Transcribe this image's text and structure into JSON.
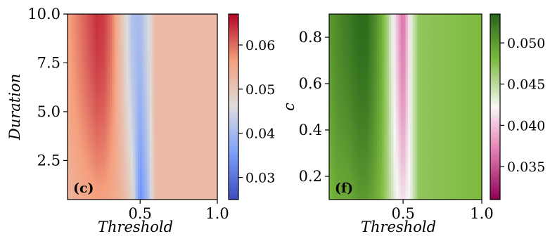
{
  "chart_data": [
    {
      "type": "heatmap",
      "panel_label": "(c)",
      "xlabel": "Threshold",
      "ylabel": "Duration",
      "xlim": [
        0.03,
        1.0
      ],
      "ylim": [
        0.5,
        10.0
      ],
      "x_ticks": [
        0.5,
        1.0
      ],
      "x_tick_labels": [
        "0.5",
        "1.0"
      ],
      "y_ticks": [
        2.5,
        5.0,
        7.5,
        10.0
      ],
      "y_tick_labels": [
        "2.5",
        "5.0",
        "7.5",
        "10.0"
      ],
      "colormap": "coolwarm",
      "colorbar_range": [
        0.025,
        0.067
      ],
      "colorbar_ticks": [
        0.03,
        0.04,
        0.05,
        0.06
      ],
      "colorbar_tick_labels": [
        "0.03",
        "0.04",
        "0.05",
        "0.06"
      ],
      "grid": false,
      "background_value": 0.052,
      "profile_x": [
        0.03,
        0.08,
        0.15,
        0.22,
        0.27,
        0.32,
        0.36,
        0.4,
        0.45,
        0.5,
        0.55,
        0.6,
        1.0
      ],
      "profile_top": [
        0.056,
        0.058,
        0.061,
        0.064,
        0.063,
        0.059,
        0.053,
        0.048,
        0.041,
        0.04,
        0.045,
        0.052,
        0.052
      ],
      "profile_bottom": [
        0.053,
        0.054,
        0.055,
        0.056,
        0.056,
        0.055,
        0.054,
        0.052,
        0.048,
        0.033,
        0.04,
        0.052,
        0.052
      ]
    },
    {
      "type": "heatmap",
      "panel_label": "(f)",
      "xlabel": "Threshold",
      "ylabel": "c",
      "xlim": [
        0.03,
        1.0
      ],
      "ylim": [
        0.1,
        0.9
      ],
      "x_ticks": [
        0.5,
        1.0
      ],
      "x_tick_labels": [
        "0.5",
        "1.0"
      ],
      "y_ticks": [
        0.2,
        0.4,
        0.6,
        0.8
      ],
      "y_tick_labels": [
        "0.2",
        "0.4",
        "0.6",
        "0.8"
      ],
      "colormap": "PiYG",
      "colorbar_range": [
        0.031,
        0.0535
      ],
      "colorbar_ticks": [
        0.035,
        0.04,
        0.045,
        0.05
      ],
      "colorbar_tick_labels": [
        "0.035",
        "0.040",
        "0.045",
        "0.050"
      ],
      "grid": false,
      "background_value": 0.048,
      "profile_x": [
        0.03,
        0.08,
        0.15,
        0.22,
        0.27,
        0.32,
        0.36,
        0.4,
        0.45,
        0.5,
        0.55,
        0.6,
        1.0
      ],
      "profile_top": [
        0.05,
        0.051,
        0.052,
        0.053,
        0.053,
        0.051,
        0.049,
        0.046,
        0.041,
        0.036,
        0.043,
        0.047,
        0.048
      ],
      "profile_bottom": [
        0.048,
        0.049,
        0.049,
        0.05,
        0.05,
        0.049,
        0.048,
        0.046,
        0.043,
        0.041,
        0.043,
        0.047,
        0.048
      ]
    }
  ]
}
